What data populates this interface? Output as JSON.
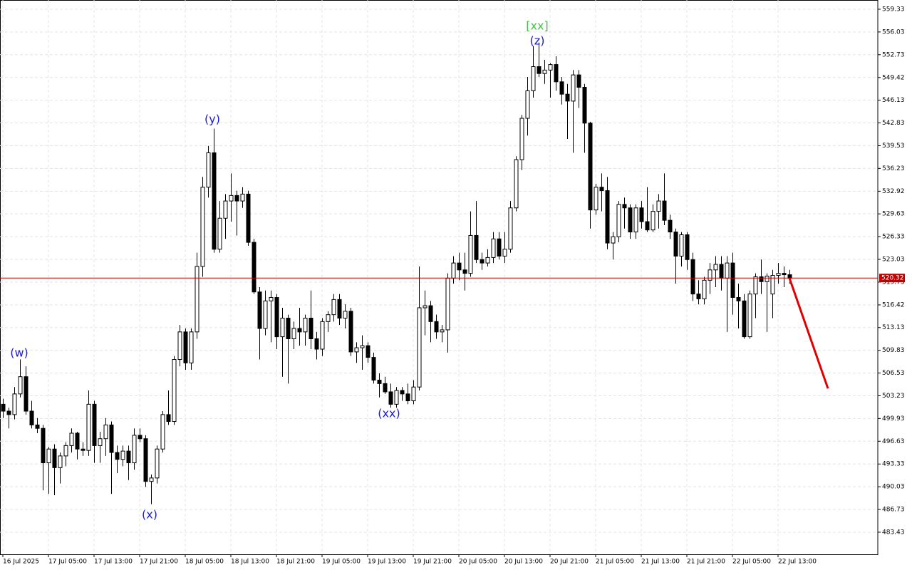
{
  "chart_data": {
    "type": "candlestick",
    "categories": [
      "16 Jul 2025",
      null,
      null,
      null,
      null,
      null,
      null,
      null,
      "17 Jul 05:00",
      null,
      null,
      null,
      null,
      null,
      null,
      null,
      "17 Jul 13:00",
      null,
      null,
      null,
      null,
      null,
      null,
      null,
      "17 Jul 21:00",
      null,
      null,
      null,
      null,
      null,
      null,
      null,
      "18 Jul 05:00",
      null,
      null,
      null,
      null,
      null,
      null,
      null,
      "18 Jul 13:00",
      null,
      null,
      null,
      null,
      null,
      null,
      null,
      "18 Jul 21:00",
      null,
      null,
      null,
      null,
      null,
      null,
      null,
      "19 Jul 05:00",
      null,
      null,
      null,
      null,
      null,
      null,
      null,
      "19 Jul 13:00",
      null,
      null,
      null,
      null,
      null,
      null,
      null,
      "19 Jul 21:00",
      null,
      null,
      null,
      null,
      null,
      null,
      null,
      "20 Jul 05:00",
      null,
      null,
      null,
      null,
      null,
      null,
      null,
      "20 Jul 13:00",
      null,
      null,
      null,
      null,
      null,
      null,
      null,
      "20 Jul 21:00",
      null,
      null,
      null,
      null,
      null,
      null,
      null,
      "21 Jul 05:00",
      null,
      null,
      null,
      null,
      null,
      null,
      null,
      "21 Jul 13:00",
      null,
      null,
      null,
      null,
      null,
      null,
      null,
      "21 Jul 21:00",
      null,
      null,
      null,
      null,
      null,
      null,
      null,
      "22 Jul 05:00",
      null,
      null,
      null,
      null,
      null,
      null,
      null,
      "22 Jul 13:00",
      null,
      null
    ],
    "ohlc": [
      [
        502.0,
        502.8,
        500.0,
        501.0
      ],
      [
        501.0,
        501.5,
        498.5,
        500.5
      ],
      [
        500.5,
        504.5,
        499.8,
        503.5
      ],
      [
        503.5,
        508.5,
        503.0,
        506.0
      ],
      [
        506.0,
        507.5,
        500.5,
        501.0
      ],
      [
        501.0,
        502.5,
        498.5,
        499.0
      ],
      [
        499.0,
        500.0,
        497.8,
        498.5
      ],
      [
        498.5,
        499.0,
        489.5,
        493.5
      ],
      [
        493.5,
        495.8,
        489.0,
        495.5
      ],
      [
        495.5,
        496.2,
        488.8,
        492.8
      ],
      [
        492.8,
        495.0,
        490.5,
        494.5
      ],
      [
        494.5,
        496.5,
        493.0,
        496.0
      ],
      [
        496.0,
        498.5,
        495.0,
        497.8
      ],
      [
        497.8,
        498.0,
        494.0,
        495.5
      ],
      [
        495.5,
        496.5,
        494.5,
        495.3
      ],
      [
        495.3,
        504.0,
        494.5,
        502.0
      ],
      [
        502.0,
        502.5,
        493.5,
        496.0
      ],
      [
        496.0,
        498.0,
        493.5,
        497.0
      ],
      [
        497.0,
        500.0,
        494.5,
        499.0
      ],
      [
        499.0,
        499.5,
        489.0,
        495.0
      ],
      [
        495.0,
        496.0,
        492.0,
        494.0
      ],
      [
        494.0,
        496.0,
        493.0,
        495.2
      ],
      [
        495.2,
        496.0,
        491.0,
        493.5
      ],
      [
        493.5,
        498.5,
        492.5,
        497.5
      ],
      [
        497.5,
        498.5,
        496.5,
        497.0
      ],
      [
        497.0,
        497.5,
        490.0,
        490.8
      ],
      [
        490.8,
        491.8,
        487.5,
        491.3
      ],
      [
        491.3,
        496.0,
        490.5,
        495.5
      ],
      [
        495.5,
        501.0,
        495.0,
        500.5
      ],
      [
        500.5,
        504.0,
        499.0,
        499.5
      ],
      [
        499.5,
        509.0,
        499.0,
        508.5
      ],
      [
        508.5,
        513.5,
        507.5,
        512.5
      ],
      [
        512.5,
        513.0,
        507.0,
        508.0
      ],
      [
        508.0,
        513.0,
        507.0,
        512.5
      ],
      [
        512.5,
        524.0,
        511.5,
        522.0
      ],
      [
        522.0,
        535.0,
        520.5,
        533.5
      ],
      [
        533.5,
        539.5,
        532.0,
        538.5
      ],
      [
        538.5,
        542.0,
        524.0,
        524.5
      ],
      [
        524.5,
        531.5,
        524.0,
        529.0
      ],
      [
        529.0,
        532.5,
        526.0,
        531.5
      ],
      [
        531.5,
        535.5,
        528.5,
        532.3
      ],
      [
        532.3,
        533.0,
        526.5,
        531.5
      ],
      [
        531.5,
        533.5,
        530.5,
        532.5
      ],
      [
        532.5,
        533.0,
        525.0,
        525.5
      ],
      [
        525.5,
        526.0,
        518.0,
        518.3
      ],
      [
        518.3,
        519.0,
        508.5,
        513.0
      ],
      [
        513.0,
        518.5,
        512.0,
        517.0
      ],
      [
        517.0,
        518.5,
        511.0,
        517.5
      ],
      [
        517.5,
        518.0,
        510.0,
        511.8
      ],
      [
        511.8,
        516.0,
        506.0,
        514.5
      ],
      [
        514.5,
        515.0,
        505.0,
        511.5
      ],
      [
        511.5,
        514.0,
        510.0,
        513.0
      ],
      [
        513.0,
        516.0,
        510.5,
        512.5
      ],
      [
        512.5,
        515.0,
        510.5,
        514.5
      ],
      [
        514.5,
        518.5,
        510.0,
        511.5
      ],
      [
        511.5,
        512.5,
        508.5,
        510.0
      ],
      [
        510.0,
        514.5,
        509.0,
        514.0
      ],
      [
        514.0,
        515.5,
        512.5,
        515.0
      ],
      [
        515.0,
        518.0,
        514.0,
        517.2
      ],
      [
        517.2,
        518.0,
        513.5,
        514.5
      ],
      [
        514.5,
        516.5,
        513.0,
        515.5
      ],
      [
        515.5,
        516.0,
        509.0,
        509.6
      ],
      [
        509.6,
        511.0,
        508.0,
        510.2
      ],
      [
        510.2,
        512.0,
        507.0,
        510.5
      ],
      [
        510.5,
        511.0,
        508.0,
        508.8
      ],
      [
        508.8,
        509.5,
        505.0,
        505.5
      ],
      [
        505.5,
        506.5,
        503.0,
        505.0
      ],
      [
        505.0,
        506.0,
        503.5,
        503.8
      ],
      [
        503.8,
        505.0,
        501.5,
        502.0
      ],
      [
        502.0,
        504.5,
        501.5,
        504.0
      ],
      [
        504.0,
        504.5,
        502.5,
        503.5
      ],
      [
        503.5,
        505.0,
        502.0,
        502.5
      ],
      [
        502.5,
        505.5,
        502.0,
        504.5
      ],
      [
        504.5,
        522.0,
        504.0,
        516.0
      ],
      [
        516.0,
        518.5,
        512.0,
        516.3
      ],
      [
        516.3,
        517.0,
        511.0,
        514.0
      ],
      [
        514.0,
        515.0,
        511.5,
        512.5
      ],
      [
        512.5,
        513.5,
        511.0,
        512.8
      ],
      [
        512.8,
        521.0,
        509.5,
        520.3
      ],
      [
        520.3,
        523.5,
        519.5,
        522.5
      ],
      [
        522.5,
        524.0,
        520.0,
        521.5
      ],
      [
        521.5,
        524.0,
        518.5,
        521.0
      ],
      [
        521.0,
        530.0,
        520.5,
        526.5
      ],
      [
        526.5,
        531.5,
        522.5,
        523.0
      ],
      [
        523.0,
        524.0,
        521.5,
        522.5
      ],
      [
        522.5,
        524.5,
        522.0,
        523.3
      ],
      [
        523.3,
        527.0,
        522.5,
        526.0
      ],
      [
        526.0,
        527.0,
        523.0,
        523.5
      ],
      [
        523.5,
        527.0,
        522.5,
        524.5
      ],
      [
        524.5,
        531.5,
        524.0,
        530.5
      ],
      [
        530.5,
        538.0,
        530.0,
        537.5
      ],
      [
        537.5,
        544.0,
        536.0,
        543.5
      ],
      [
        543.5,
        549.5,
        541.0,
        547.5
      ],
      [
        547.5,
        554.0,
        546.5,
        551.0
      ],
      [
        551.0,
        554.5,
        549.5,
        550.0
      ],
      [
        550.0,
        552.0,
        548.5,
        550.5
      ],
      [
        550.5,
        551.5,
        546.5,
        551.3
      ],
      [
        551.3,
        552.5,
        547.5,
        548.8
      ],
      [
        548.8,
        549.5,
        545.5,
        547.0
      ],
      [
        547.0,
        548.5,
        540.5,
        546.0
      ],
      [
        546.0,
        550.5,
        538.5,
        549.8
      ],
      [
        549.8,
        550.5,
        545.0,
        548.0
      ],
      [
        548.0,
        548.5,
        538.5,
        542.8
      ],
      [
        542.8,
        543.0,
        527.5,
        530.2
      ],
      [
        530.2,
        534.0,
        529.5,
        533.5
      ],
      [
        533.5,
        535.5,
        530.0,
        533.0
      ],
      [
        533.0,
        535.0,
        524.5,
        525.4
      ],
      [
        525.4,
        527.0,
        523.0,
        526.3
      ],
      [
        526.3,
        531.5,
        525.5,
        531.0
      ],
      [
        531.0,
        532.0,
        527.5,
        530.5
      ],
      [
        530.5,
        531.0,
        526.0,
        527.0
      ],
      [
        527.0,
        531.0,
        526.0,
        530.5
      ],
      [
        530.5,
        531.5,
        527.5,
        528.5
      ],
      [
        528.5,
        533.5,
        527.0,
        527.3
      ],
      [
        527.3,
        531.0,
        527.0,
        530.0
      ],
      [
        530.0,
        532.5,
        527.5,
        531.5
      ],
      [
        531.5,
        535.5,
        528.0,
        528.7
      ],
      [
        528.7,
        529.5,
        526.0,
        527.0
      ],
      [
        527.0,
        527.5,
        519.5,
        523.5
      ],
      [
        523.5,
        527.0,
        522.0,
        526.6
      ],
      [
        526.6,
        527.0,
        521.5,
        523.0
      ],
      [
        523.0,
        524.0,
        517.0,
        518.0
      ],
      [
        518.0,
        520.0,
        516.5,
        517.3
      ],
      [
        517.3,
        520.5,
        516.5,
        520.0
      ],
      [
        520.0,
        522.5,
        518.0,
        521.5
      ],
      [
        521.5,
        523.5,
        519.0,
        522.3
      ],
      [
        522.3,
        523.5,
        518.5,
        520.3
      ],
      [
        520.3,
        523.5,
        512.5,
        522.5
      ],
      [
        522.5,
        524.0,
        515.0,
        517.5
      ],
      [
        517.5,
        519.5,
        513.0,
        517.0
      ],
      [
        517.0,
        518.0,
        511.5,
        511.8
      ],
      [
        511.8,
        518.5,
        511.5,
        518.0
      ],
      [
        518.0,
        521.0,
        514.5,
        520.5
      ],
      [
        520.5,
        523.0,
        518.0,
        519.8
      ],
      [
        519.8,
        521.0,
        512.5,
        520.6
      ],
      [
        518.0,
        521.5,
        514.5,
        520.7
      ],
      [
        520.7,
        522.5,
        519.5,
        521.0
      ],
      [
        521.0,
        522.0,
        519.0,
        520.8
      ],
      [
        520.8,
        521.5,
        519.5,
        520.3
      ]
    ],
    "ylim": [
      480.22,
      560.67
    ],
    "yticks": [
      559.33,
      556.03,
      552.73,
      549.42,
      546.13,
      542.83,
      539.53,
      536.23,
      532.92,
      529.63,
      526.33,
      523.03,
      519.73,
      516.42,
      513.13,
      509.83,
      506.53,
      503.23,
      499.93,
      496.63,
      493.33,
      490.03,
      486.73,
      483.43
    ],
    "grid": true,
    "price_line": 520.32,
    "price_line_color": "#c00000",
    "forecast": {
      "values": [
        520.3,
        504.3
      ],
      "color": "#e00000"
    },
    "annotations": [
      {
        "text": "(w)",
        "color": "#1a1ad8"
      },
      {
        "text": "(y)",
        "color": "#1a1ad8"
      },
      {
        "text": "(x)",
        "color": "#1a1ad8"
      },
      {
        "text": "(xx)",
        "color": "#1a1ad8"
      },
      {
        "text": "[xx]",
        "color": "#3cc83c"
      },
      {
        "text": "(z)",
        "color": "#1a1ad8"
      }
    ]
  }
}
